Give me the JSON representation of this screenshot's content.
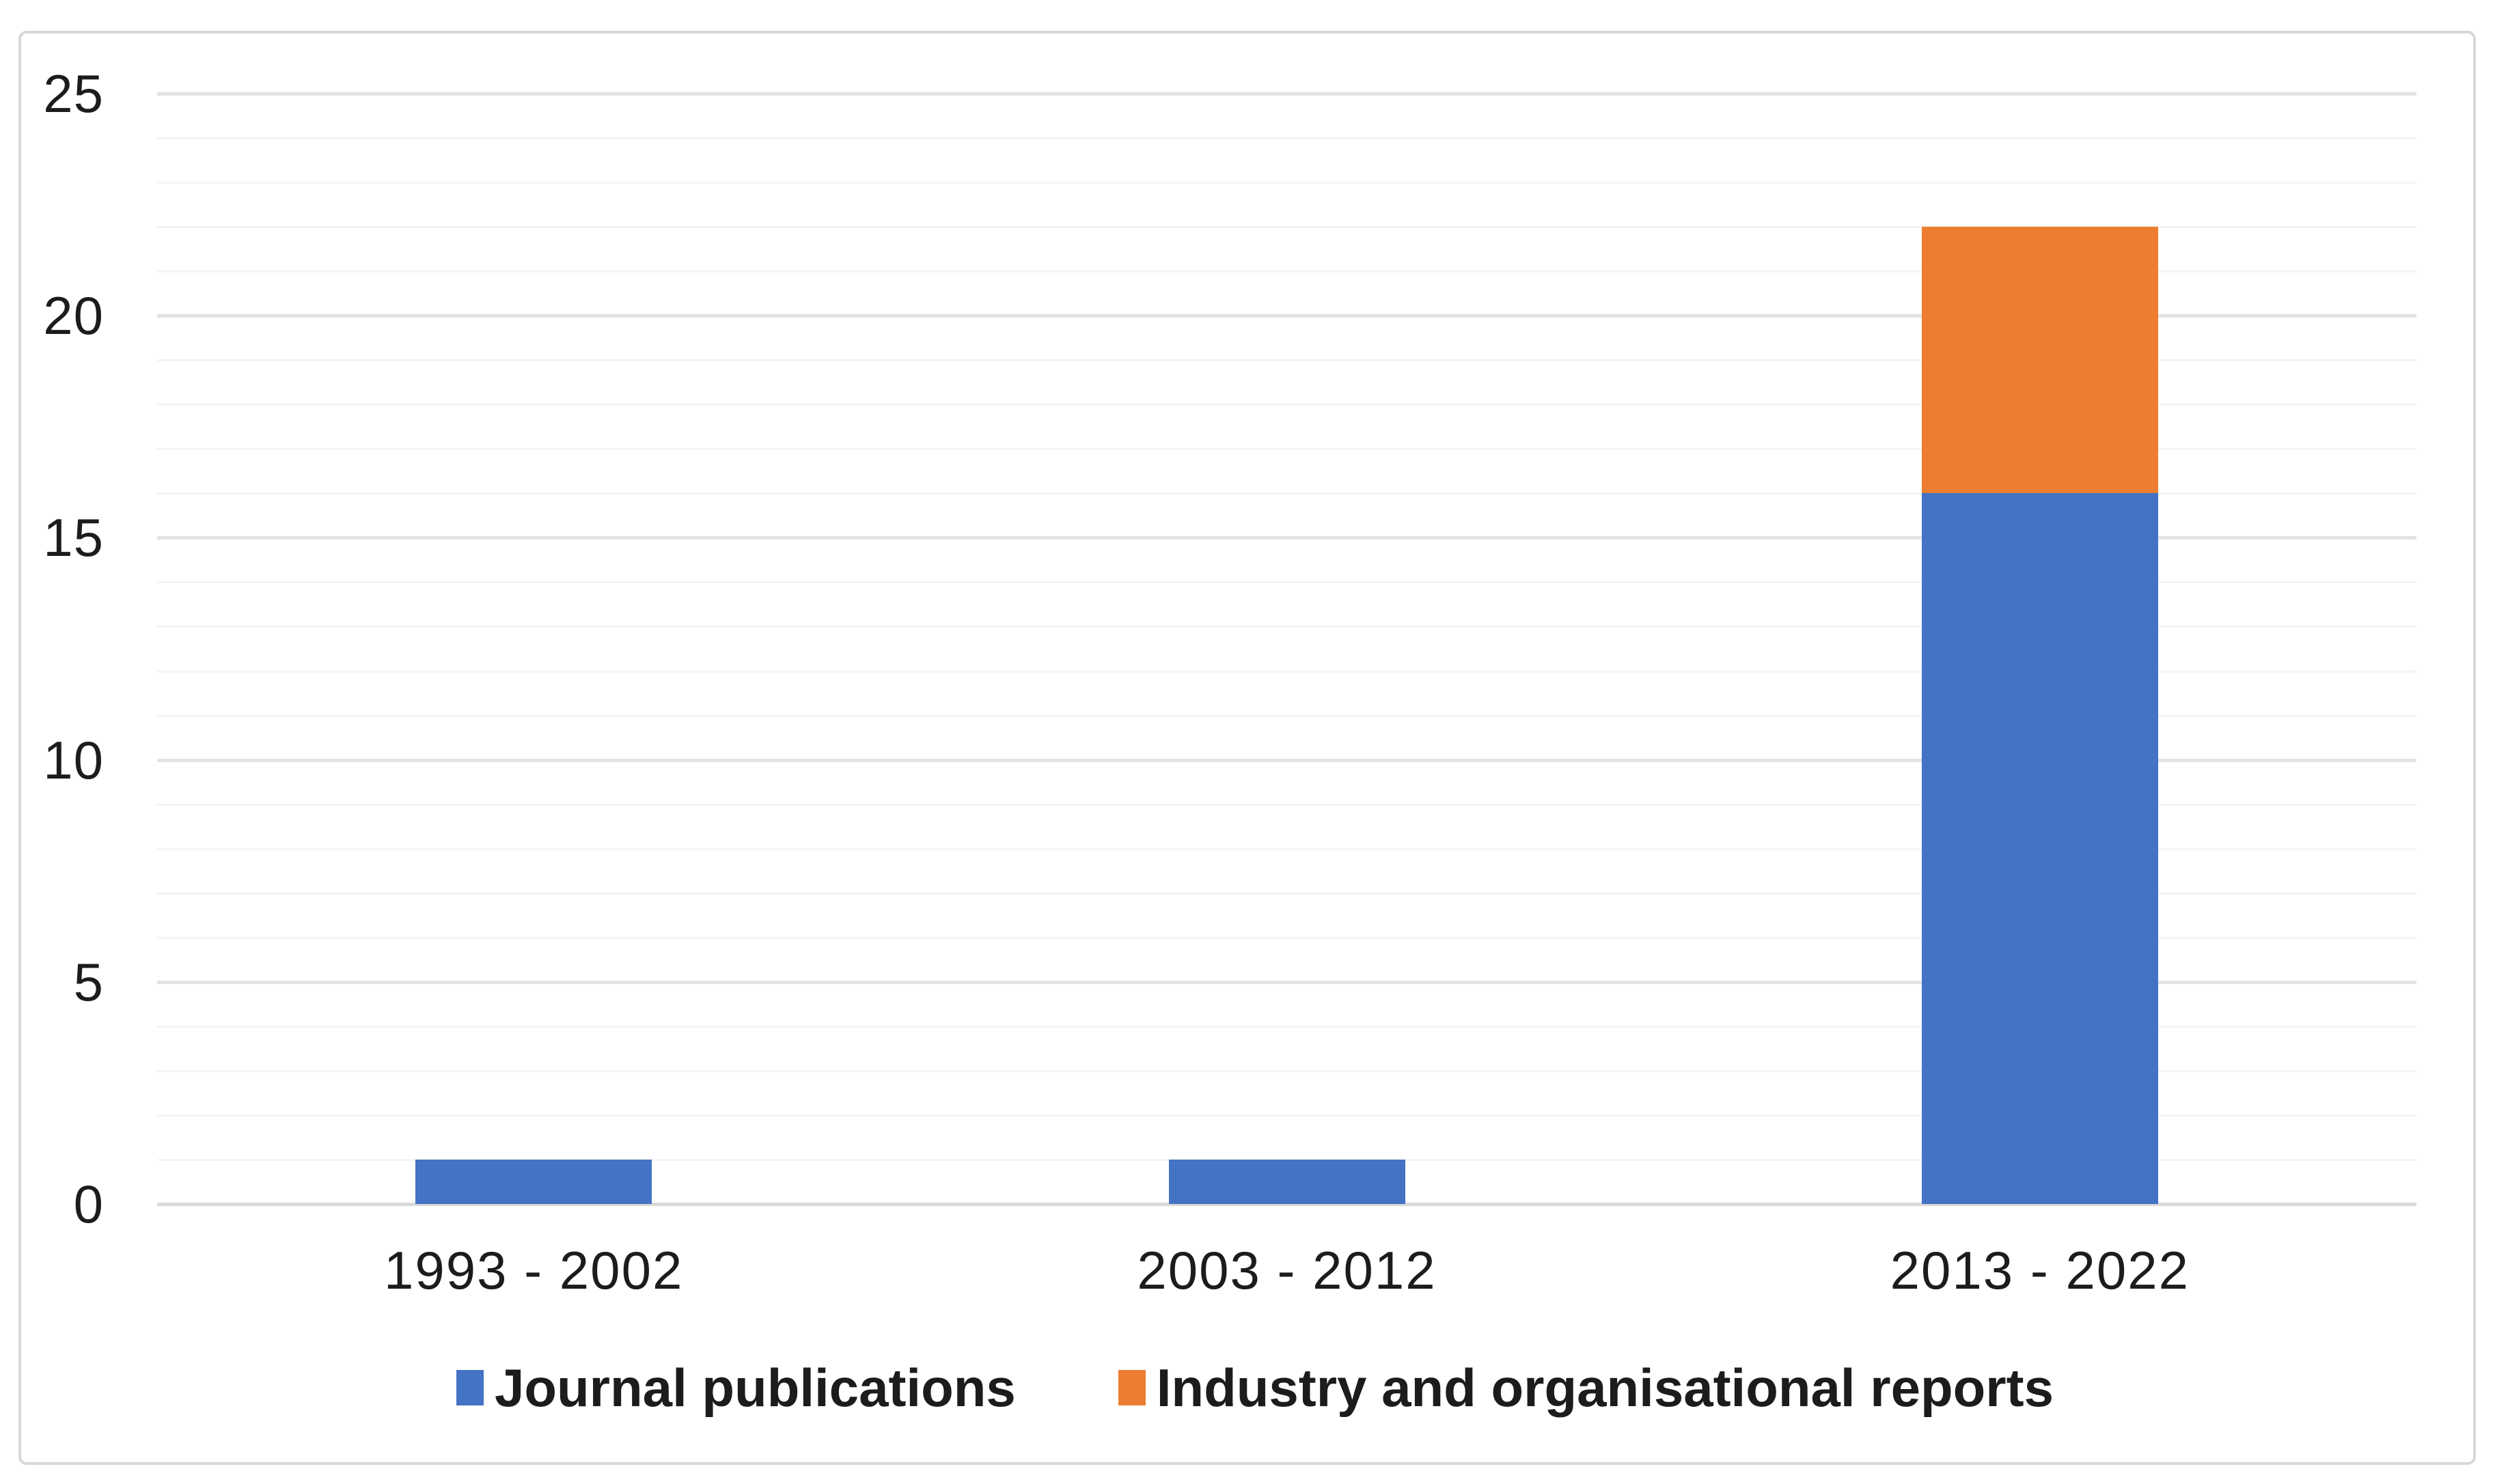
{
  "chart_data": {
    "type": "bar",
    "stacked": true,
    "title": "",
    "categories": [
      "1993 - 2002",
      "2003 - 2012",
      "2013 - 2022"
    ],
    "series": [
      {
        "name": "Journal publications",
        "color": "#4472C4",
        "values": [
          1,
          1,
          16
        ]
      },
      {
        "name": "Industry and organisational reports",
        "color": "#ED7D31",
        "values": [
          0,
          0,
          6
        ]
      }
    ],
    "totals": [
      1,
      1,
      22
    ],
    "xlabel": "",
    "ylabel": "",
    "ylim": [
      0,
      25
    ],
    "yticks": [
      0,
      5,
      10,
      15,
      20,
      25
    ],
    "ytick_labels": [
      "0",
      "5",
      "10",
      "15",
      "20",
      "25"
    ],
    "minor_gridline_step": 1,
    "major_gridline_step": 5,
    "grid": "horizontal",
    "legend_position": "bottom",
    "colors": {
      "minor_gridline": "#F4F4F4",
      "major_gridline": "#E3E3E3",
      "baseline": "#D9D9D9",
      "text": "#1C1C1C",
      "card_border": "#D8D8D8",
      "background": "#FFFFFF"
    }
  }
}
